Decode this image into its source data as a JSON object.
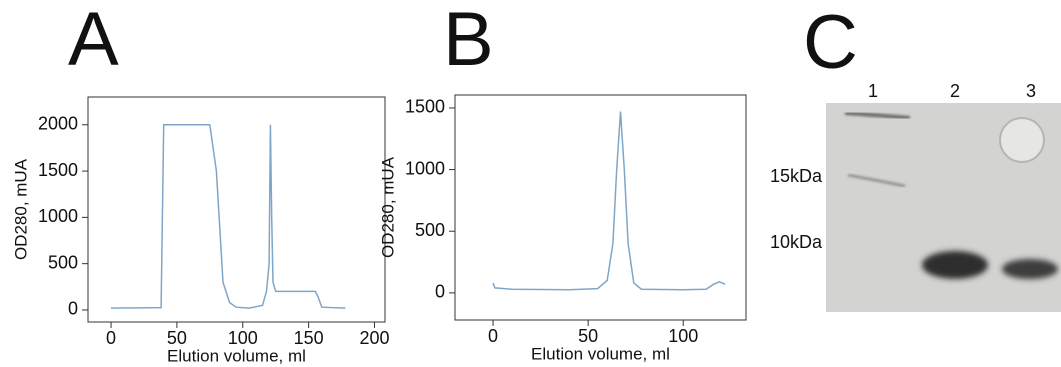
{
  "chart_data": [
    {
      "type": "line",
      "title": "A",
      "xlabel": "Elution volume, ml",
      "ylabel": "OD280, mUA",
      "x": [
        0,
        38,
        40,
        75,
        80,
        85,
        90,
        95,
        105,
        115,
        118,
        120,
        121,
        122,
        123,
        125,
        155,
        157,
        160,
        178
      ],
      "values": [
        20,
        25,
        2000,
        2000,
        1500,
        300,
        80,
        30,
        20,
        50,
        200,
        500,
        2000,
        1000,
        300,
        200,
        200,
        150,
        30,
        20
      ],
      "color": "#7fa6c8",
      "xlim": [
        -17.5,
        208
      ],
      "ylim": [
        -130,
        2300
      ],
      "xticks": [
        0,
        50,
        100,
        150,
        200
      ],
      "yticks": [
        0,
        500,
        1000,
        1500,
        2000
      ]
    },
    {
      "type": "line",
      "title": "B",
      "xlabel": "Elution volume, ml",
      "ylabel": "OD280, mUA",
      "x": [
        0,
        1,
        10,
        40,
        55,
        60,
        63,
        65,
        67,
        69,
        71,
        74,
        78,
        100,
        112,
        116,
        119,
        122
      ],
      "values": [
        80,
        40,
        30,
        25,
        35,
        100,
        400,
        1000,
        1470,
        1000,
        400,
        80,
        30,
        25,
        30,
        70,
        90,
        70
      ],
      "color": "#7fa6c8",
      "xlim": [
        -20,
        133
      ],
      "ylim": [
        -220,
        1605
      ],
      "xticks": [
        0,
        50,
        100
      ],
      "yticks": [
        0,
        500,
        1000,
        1500
      ]
    }
  ],
  "gel": {
    "title": "C",
    "lanes": [
      "1",
      "2",
      "3"
    ],
    "markers": [
      "15kDa",
      "10kDa"
    ]
  }
}
